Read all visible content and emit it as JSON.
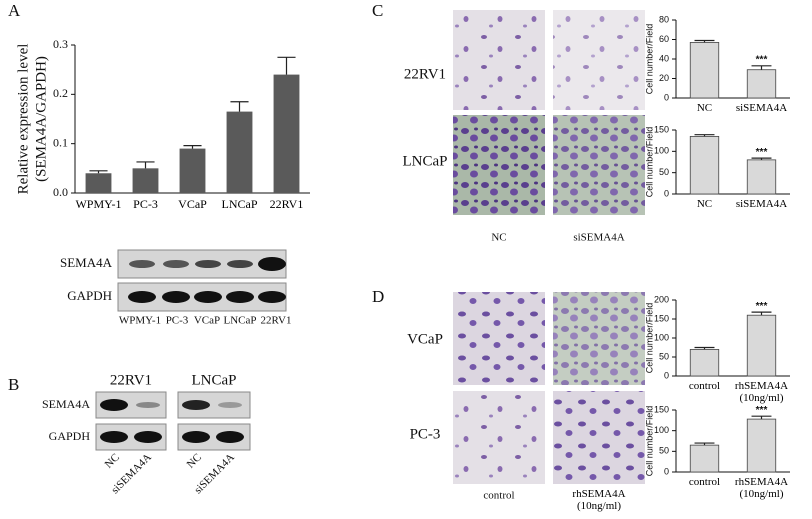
{
  "chart_data": [
    {
      "type": "bar",
      "ylabel": [
        "Relative expression level",
        "(SEMA4A/GAPDH)"
      ],
      "categories": [
        "WPMY-1",
        "PC-3",
        "VCaP",
        "LNCaP",
        "22RV1"
      ],
      "values": [
        0.04,
        0.05,
        0.09,
        0.165,
        0.24
      ],
      "errors": [
        0.005,
        0.013,
        0.006,
        0.02,
        0.035
      ],
      "color": "#5a5a5a",
      "ylim": [
        0,
        0.3
      ],
      "yticks": [
        {
          "value": 0,
          "label": "0.0"
        },
        0.1,
        0.2,
        0.3
      ]
    },
    {
      "type": "bar",
      "ylabel": [
        "Cell number/Field"
      ],
      "categories": [
        "NC",
        "siSEMA4A"
      ],
      "values": [
        57,
        29
      ],
      "errors": [
        2,
        4
      ],
      "color": "#d9d9d9",
      "ylim": [
        0,
        80
      ],
      "yticks": [
        0,
        20,
        40,
        60,
        80
      ],
      "annotations": [
        {
          "text": "***",
          "x": "siSEMA4A"
        }
      ]
    },
    {
      "type": "bar",
      "ylabel": [
        "Cell number/Field"
      ],
      "categories": [
        "NC",
        "siSEMA4A"
      ],
      "values": [
        135,
        80
      ],
      "errors": [
        4,
        4
      ],
      "color": "#d9d9d9",
      "ylim": [
        0,
        150
      ],
      "yticks": [
        0,
        50,
        100,
        150
      ],
      "annotations": [
        {
          "text": "***",
          "x": "siSEMA4A"
        }
      ]
    },
    {
      "type": "bar",
      "ylabel": [
        "Cell number/Field"
      ],
      "categories": [
        "control",
        "rhSEMA4A (10ng/ml)"
      ],
      "values": [
        70,
        160
      ],
      "errors": [
        5,
        8
      ],
      "color": "#d9d9d9",
      "ylim": [
        0,
        200
      ],
      "yticks": [
        0,
        50,
        100,
        150,
        200
      ],
      "annotations": [
        {
          "text": "***",
          "x": "rhSEMA4A (10ng/ml)"
        }
      ]
    },
    {
      "type": "bar",
      "ylabel": [
        "Cell number/Field"
      ],
      "categories": [
        "control",
        "rhSEMA4A (10ng/ml)"
      ],
      "values": [
        65,
        128
      ],
      "errors": [
        5,
        7
      ],
      "color": "#d9d9d9",
      "ylim": [
        0,
        150
      ],
      "yticks": [
        0,
        50,
        100,
        150
      ],
      "annotations": [
        {
          "text": "***",
          "x": "rhSEMA4A (10ng/ml)"
        }
      ]
    }
  ],
  "figure": {
    "panel_labels": [
      "A",
      "B",
      "C",
      "D"
    ],
    "blot_a": {
      "rows": [
        "SEMA4A",
        "GAPDH"
      ],
      "lanes": [
        "WPMY-1",
        "PC-3",
        "VCaP",
        "LNCaP",
        "22RV1"
      ]
    },
    "blot_b": {
      "groups": [
        "22RV1",
        "LNCaP"
      ],
      "rows": [
        "SEMA4A",
        "GAPDH"
      ],
      "lanes": [
        "NC",
        "siSEMA4A",
        "NC",
        "siSEMA4A"
      ]
    },
    "images_c": {
      "rows": [
        "22RV1",
        "LNCaP"
      ],
      "columns": [
        "NC",
        "siSEMA4A"
      ]
    },
    "images_d": {
      "rows": [
        "VCaP",
        "PC-3"
      ],
      "columns": [
        "control",
        "rhSEMA4A (10ng/ml)"
      ]
    }
  }
}
